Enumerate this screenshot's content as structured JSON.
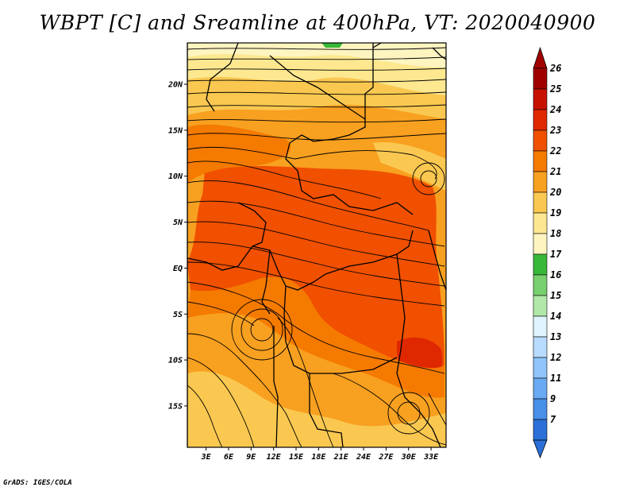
{
  "title": "WBPT [C] and Sreamline at 400hPa, VT: 2020040900",
  "credit": "GrADS: IGES/COLA",
  "map": {
    "lon_range": [
      0.5,
      35
    ],
    "lat_range": [
      -19.5,
      24.5
    ],
    "lon_ticks": [
      "3E",
      "6E",
      "9E",
      "12E",
      "15E",
      "18E",
      "21E",
      "24E",
      "27E",
      "30E",
      "33E"
    ],
    "lat_ticks": [
      "20N",
      "15N",
      "10N",
      "5N",
      "EQ",
      "5S",
      "10S",
      "15S"
    ]
  },
  "colorbar": {
    "labels": [
      "26",
      "25",
      "24",
      "23",
      "22",
      "21",
      "20",
      "19",
      "18",
      "17",
      "16",
      "15",
      "14",
      "13",
      "12",
      "11",
      "9",
      "7"
    ],
    "colors": [
      "#a00000",
      "#c81000",
      "#e02800",
      "#f05000",
      "#f57a00",
      "#f8a020",
      "#fac850",
      "#fde890",
      "#fdf4c0",
      "#38b838",
      "#78d070",
      "#b0e8a8",
      "#e0f4ff",
      "#b8dcff",
      "#90c4fa",
      "#6aaaf2",
      "#4890e8",
      "#2a70d8"
    ],
    "top_arrow_color": "#a00000",
    "bottom_arrow_color": "#2a70d8"
  }
}
